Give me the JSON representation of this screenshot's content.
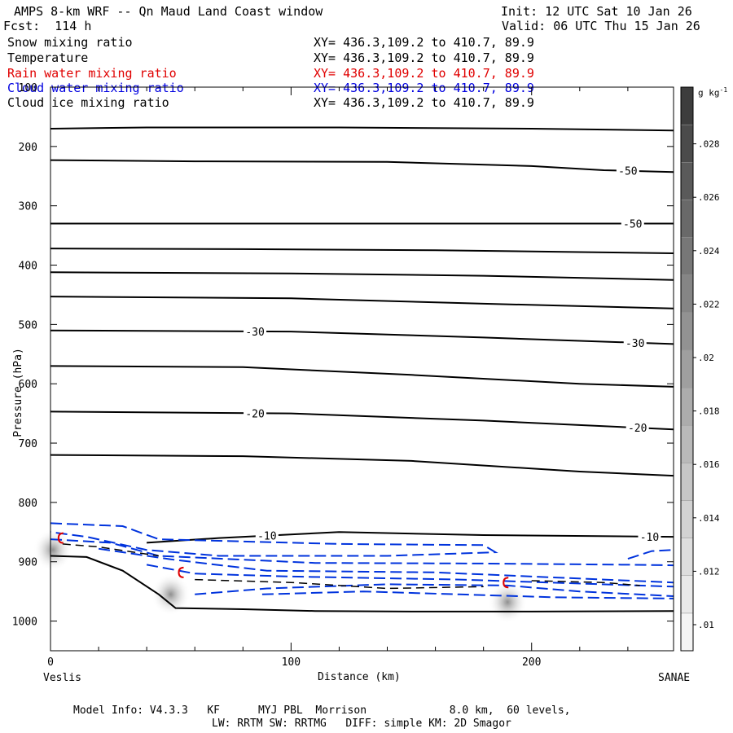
{
  "header": {
    "title": "AMPS 8-km WRF -- Qn Maud Land Coast window",
    "init": "Init: 12 UTC Sat 10 Jan 26",
    "forecast": "Fcst:  114 h",
    "valid": "Valid: 06 UTC Thu 15 Jan 26"
  },
  "fields": [
    {
      "name": "Snow mixing ratio",
      "xy": "XY= 436.3,109.2 to 410.7, 89.9",
      "color": "#000000"
    },
    {
      "name": "Temperature",
      "xy": "XY= 436.3,109.2 to 410.7, 89.9",
      "color": "#000000"
    },
    {
      "name": "Rain water mixing ratio",
      "xy": "XY= 436.3,109.2 to 410.7, 89.9",
      "color": "#e00000"
    },
    {
      "name": "Cloud water mixing ratio",
      "xy": "XY= 436.3,109.2 to 410.7, 89.9",
      "color": "#0000e0"
    },
    {
      "name": "Cloud ice mixing ratio",
      "xy": "XY= 436.3,109.2 to 410.7, 89.9",
      "color": "#000000"
    }
  ],
  "footer": {
    "line1": "Model Info: V4.3.3   KF      MYJ PBL  Morrison             8.0 km,  60 levels,",
    "line2": "LW: RRTM SW: RRTMG   DIFF: simple KM: 2D Smagor"
  },
  "chart_data": {
    "type": "contour cross-section",
    "xlabel": "Distance (km)",
    "ylabel": "Pressure (hPa)",
    "xlim": [
      0,
      259
    ],
    "ylim": [
      1050,
      100
    ],
    "x_ticks": [
      0,
      100,
      200
    ],
    "y_ticks": [
      100,
      200,
      300,
      400,
      500,
      600,
      700,
      800,
      900,
      1000
    ],
    "x_endpoints": {
      "left": "Veslis",
      "right": "SANAE"
    },
    "colorbar": {
      "unit": "g kg",
      "unit_sup": "-1",
      "ticks": [
        ".01",
        ".012",
        ".014",
        ".016",
        ".018",
        ".02",
        ".022",
        ".024",
        ".026",
        ".028"
      ],
      "shades": [
        "#f4f4f4",
        "#e9e9e9",
        "#dedede",
        "#d2d2d2",
        "#c6c6c6",
        "#b9b9b9",
        "#acacac",
        "#9f9f9f",
        "#929292",
        "#858585",
        "#777777",
        "#696969",
        "#5a5a5a",
        "#4b4b4b",
        "#3d3d3d"
      ]
    },
    "temperature_isotherms": [
      {
        "points": [
          [
            0,
            170
          ],
          [
            40,
            168
          ],
          [
            120,
            168
          ],
          [
            200,
            170
          ],
          [
            259,
            173
          ]
        ]
      },
      {
        "points": [
          [
            0,
            223
          ],
          [
            60,
            225
          ],
          [
            140,
            226
          ],
          [
            200,
            233
          ],
          [
            230,
            240
          ],
          [
            259,
            243
          ]
        ],
        "labels": [
          {
            "x": 240,
            "text": "-50"
          }
        ]
      },
      {
        "points": [
          [
            0,
            330
          ],
          [
            100,
            330
          ],
          [
            200,
            330
          ],
          [
            259,
            330
          ]
        ],
        "labels": [
          {
            "x": 242,
            "text": "-50"
          }
        ]
      },
      {
        "points": [
          [
            0,
            372
          ],
          [
            80,
            373
          ],
          [
            160,
            375
          ],
          [
            220,
            378
          ],
          [
            259,
            380
          ]
        ]
      },
      {
        "points": [
          [
            0,
            412
          ],
          [
            100,
            414
          ],
          [
            180,
            418
          ],
          [
            259,
            425
          ]
        ]
      },
      {
        "points": [
          [
            0,
            453
          ],
          [
            100,
            456
          ],
          [
            180,
            465
          ],
          [
            259,
            473
          ]
        ]
      },
      {
        "points": [
          [
            0,
            510
          ],
          [
            100,
            512
          ],
          [
            180,
            522
          ],
          [
            259,
            533
          ]
        ],
        "labels": [
          {
            "x": 85,
            "text": "-30"
          },
          {
            "x": 243,
            "text": "-30"
          }
        ]
      },
      {
        "points": [
          [
            0,
            570
          ],
          [
            80,
            572
          ],
          [
            150,
            585
          ],
          [
            220,
            600
          ],
          [
            259,
            605
          ]
        ]
      },
      {
        "points": [
          [
            0,
            647
          ],
          [
            100,
            650
          ],
          [
            180,
            662
          ],
          [
            259,
            677
          ]
        ],
        "labels": [
          {
            "x": 85,
            "text": "-20"
          },
          {
            "x": 244,
            "text": "-20"
          }
        ]
      },
      {
        "points": [
          [
            0,
            720
          ],
          [
            80,
            722
          ],
          [
            150,
            730
          ],
          [
            220,
            748
          ],
          [
            259,
            755
          ]
        ]
      },
      {
        "points": [
          [
            40,
            868
          ],
          [
            70,
            860
          ],
          [
            120,
            850
          ],
          [
            180,
            855
          ],
          [
            259,
            858
          ]
        ],
        "labels": [
          {
            "x": 90,
            "text": "-10"
          },
          {
            "x": 249,
            "text": "-10"
          }
        ]
      }
    ],
    "terrain": {
      "points": [
        [
          0,
          890
        ],
        [
          15,
          892
        ],
        [
          30,
          915
        ],
        [
          45,
          955
        ],
        [
          52,
          978
        ],
        [
          80,
          980
        ],
        [
          110,
          983
        ],
        [
          150,
          984
        ],
        [
          200,
          984
        ],
        [
          259,
          983
        ]
      ]
    },
    "snow_mixing_ratio_maxima": [
      {
        "x": 50,
        "p": 955,
        "value": 0.012
      },
      {
        "x": 190,
        "p": 968,
        "value": 0.011
      },
      {
        "x": 1,
        "p": 880,
        "value": 0.011
      }
    ]
  }
}
